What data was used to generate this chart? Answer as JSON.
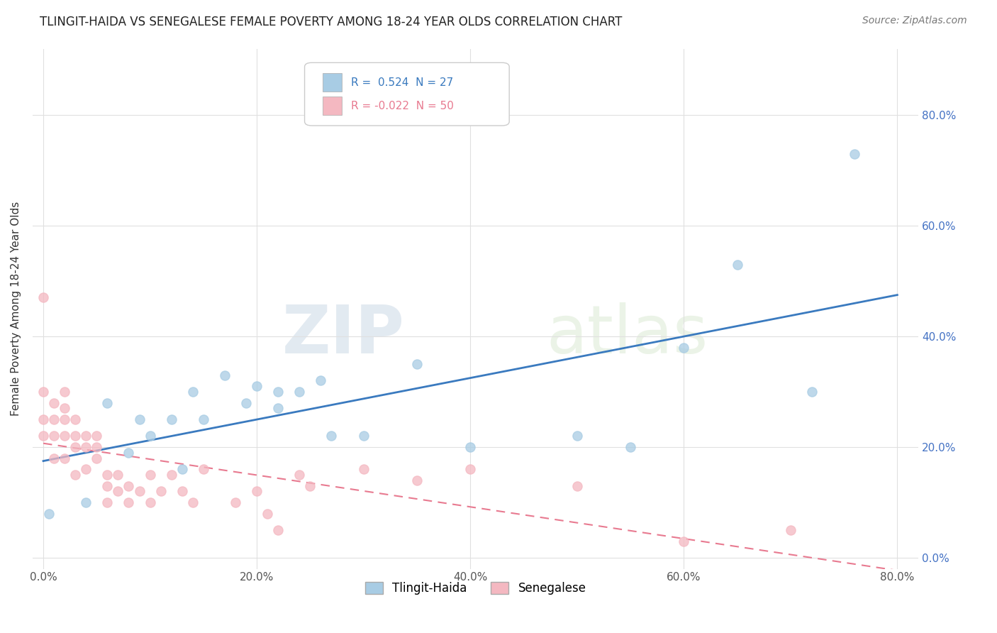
{
  "title": "TLINGIT-HAIDA VS SENEGALESE FEMALE POVERTY AMONG 18-24 YEAR OLDS CORRELATION CHART",
  "source": "Source: ZipAtlas.com",
  "ylabel": "Female Poverty Among 18-24 Year Olds",
  "xlim": [
    -0.01,
    0.82
  ],
  "ylim": [
    -0.02,
    0.92
  ],
  "yticks": [
    0.0,
    0.2,
    0.4,
    0.6,
    0.8
  ],
  "xticks": [
    0.0,
    0.2,
    0.4,
    0.6,
    0.8
  ],
  "tlingit_color": "#a8cce4",
  "senegalese_color": "#f4b8c1",
  "tlingit_line_color": "#3a7abf",
  "senegalese_line_color": "#e87a90",
  "R_tlingit": 0.524,
  "N_tlingit": 27,
  "R_senegalese": -0.022,
  "N_senegalese": 50,
  "tlingit_x": [
    0.005,
    0.04,
    0.08,
    0.1,
    0.13,
    0.14,
    0.15,
    0.17,
    0.19,
    0.2,
    0.22,
    0.24,
    0.27,
    0.3,
    0.35,
    0.4,
    0.5,
    0.55,
    0.6,
    0.65,
    0.72,
    0.76,
    0.12,
    0.06,
    0.09,
    0.22,
    0.26
  ],
  "tlingit_y": [
    0.08,
    0.1,
    0.19,
    0.22,
    0.16,
    0.3,
    0.25,
    0.33,
    0.28,
    0.31,
    0.3,
    0.3,
    0.22,
    0.22,
    0.35,
    0.2,
    0.22,
    0.2,
    0.38,
    0.53,
    0.3,
    0.73,
    0.25,
    0.28,
    0.25,
    0.27,
    0.32
  ],
  "senegalese_x": [
    0.0,
    0.0,
    0.0,
    0.0,
    0.01,
    0.01,
    0.01,
    0.01,
    0.02,
    0.02,
    0.02,
    0.02,
    0.02,
    0.03,
    0.03,
    0.03,
    0.03,
    0.04,
    0.04,
    0.04,
    0.05,
    0.05,
    0.05,
    0.06,
    0.06,
    0.06,
    0.07,
    0.07,
    0.08,
    0.08,
    0.09,
    0.1,
    0.1,
    0.11,
    0.12,
    0.13,
    0.14,
    0.15,
    0.18,
    0.2,
    0.21,
    0.22,
    0.24,
    0.25,
    0.3,
    0.35,
    0.4,
    0.5,
    0.6,
    0.7
  ],
  "senegalese_y": [
    0.47,
    0.3,
    0.25,
    0.22,
    0.28,
    0.25,
    0.22,
    0.18,
    0.3,
    0.27,
    0.25,
    0.22,
    0.18,
    0.25,
    0.22,
    0.2,
    0.15,
    0.22,
    0.2,
    0.16,
    0.22,
    0.2,
    0.18,
    0.15,
    0.13,
    0.1,
    0.15,
    0.12,
    0.13,
    0.1,
    0.12,
    0.15,
    0.1,
    0.12,
    0.15,
    0.12,
    0.1,
    0.16,
    0.1,
    0.12,
    0.08,
    0.05,
    0.15,
    0.13,
    0.16,
    0.14,
    0.16,
    0.13,
    0.03,
    0.05
  ],
  "watermark_zip": "ZIP",
  "watermark_atlas": "atlas",
  "background_color": "#ffffff",
  "grid_color": "#e0e0e0"
}
